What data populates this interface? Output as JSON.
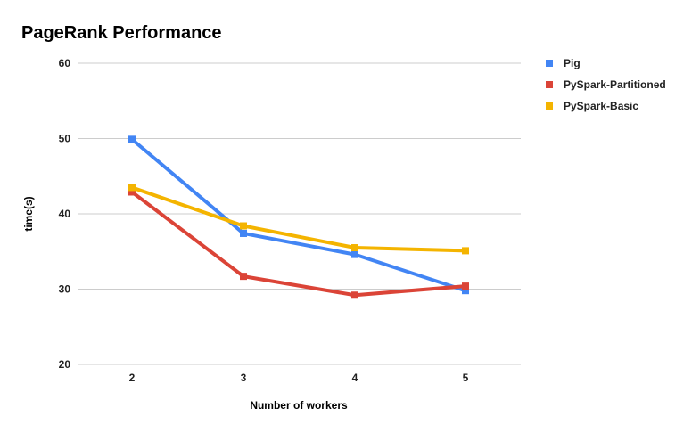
{
  "chart_data": {
    "type": "line",
    "title": "PageRank Performance",
    "xlabel": "Number of workers",
    "ylabel": "time(s)",
    "categories": [
      "2",
      "3",
      "4",
      "5"
    ],
    "ylim": [
      20,
      60
    ],
    "yticks": [
      "20",
      "30",
      "40",
      "50",
      "60"
    ],
    "grid": true,
    "legend_position": "right",
    "series": [
      {
        "name": "Pig",
        "color": "#4285F4",
        "values": [
          49.9,
          37.4,
          34.6,
          29.8
        ]
      },
      {
        "name": "PySpark-Partitioned",
        "color": "#DB4437",
        "values": [
          42.9,
          31.7,
          29.2,
          30.4
        ]
      },
      {
        "name": "PySpark-Basic",
        "color": "#F4B400",
        "values": [
          43.5,
          38.4,
          35.5,
          35.1
        ]
      }
    ]
  }
}
